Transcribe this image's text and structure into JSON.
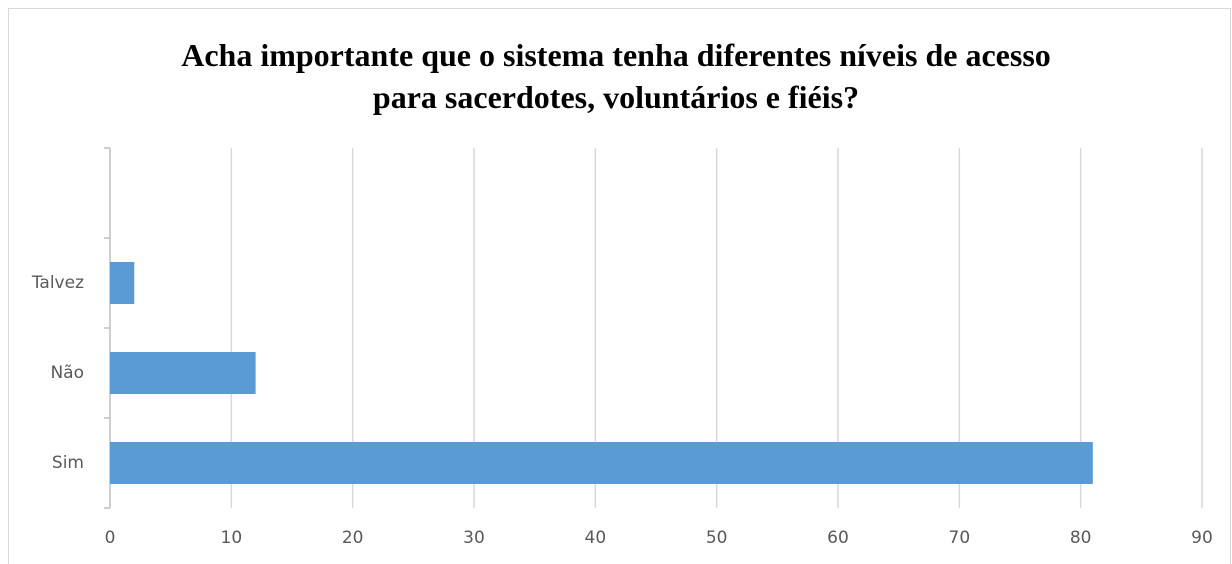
{
  "chart_data": {
    "type": "bar",
    "orientation": "horizontal",
    "title": "Acha importante que o sistema tenha diferentes níveis de acesso para sacerdotes, voluntários e fiéis?",
    "categories": [
      "Sim",
      "Não",
      "Talvez",
      null
    ],
    "values": [
      81,
      12,
      2,
      null
    ],
    "color": "#5b9bd5",
    "xlim": [
      0,
      90
    ],
    "xticks": [
      0,
      10,
      20,
      30,
      40,
      50,
      60,
      70,
      80,
      90
    ],
    "grid": true
  }
}
